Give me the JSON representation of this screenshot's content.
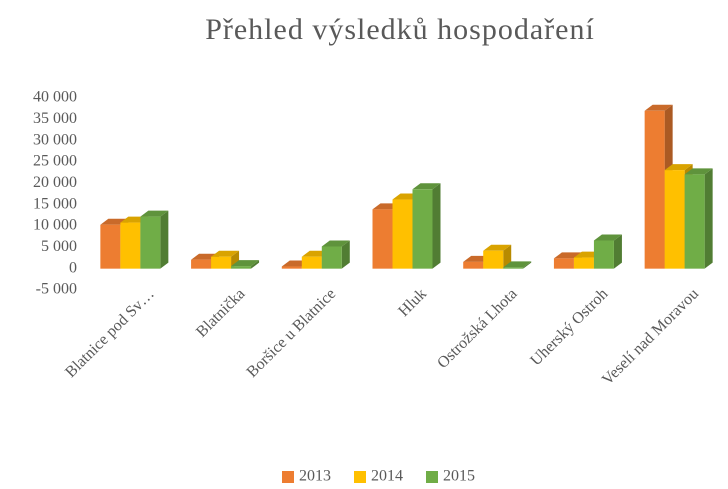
{
  "chart_data": {
    "type": "bar3d",
    "title": "Přehled výsledků hospodaření",
    "categories": [
      "Blatnice pod Sv…",
      "Blatnička",
      "Boršice u Blatnice",
      "Hluk",
      "Ostrožská Lhota",
      "Uherský Ostroh",
      "Veselí nad Moravou"
    ],
    "series": [
      {
        "name": "2013",
        "color": "#ED7D31",
        "values": [
          10300,
          2100,
          500,
          13900,
          1600,
          2400,
          37000
        ]
      },
      {
        "name": "2014",
        "color": "#FFC000",
        "values": [
          10800,
          2800,
          2800,
          16200,
          4200,
          2600,
          23100
        ]
      },
      {
        "name": "2015",
        "color": "#70AD47",
        "values": [
          12200,
          600,
          5200,
          18600,
          300,
          6600,
          22100
        ]
      }
    ],
    "ylim": [
      -5000,
      40000
    ],
    "yticks": [
      {
        "value": -5000,
        "label": "-5 000"
      },
      0,
      {
        "value": 5000,
        "label": "5 000"
      },
      {
        "value": 10000,
        "label": "10 000"
      },
      {
        "value": 15000,
        "label": "15 000"
      },
      {
        "value": 20000,
        "label": "20 000"
      },
      {
        "value": 25000,
        "label": "25 000"
      },
      {
        "value": 30000,
        "label": "30 000"
      },
      {
        "value": 35000,
        "label": "35 000"
      },
      {
        "value": 40000,
        "label": "40 000"
      }
    ],
    "legend": "bottom"
  }
}
